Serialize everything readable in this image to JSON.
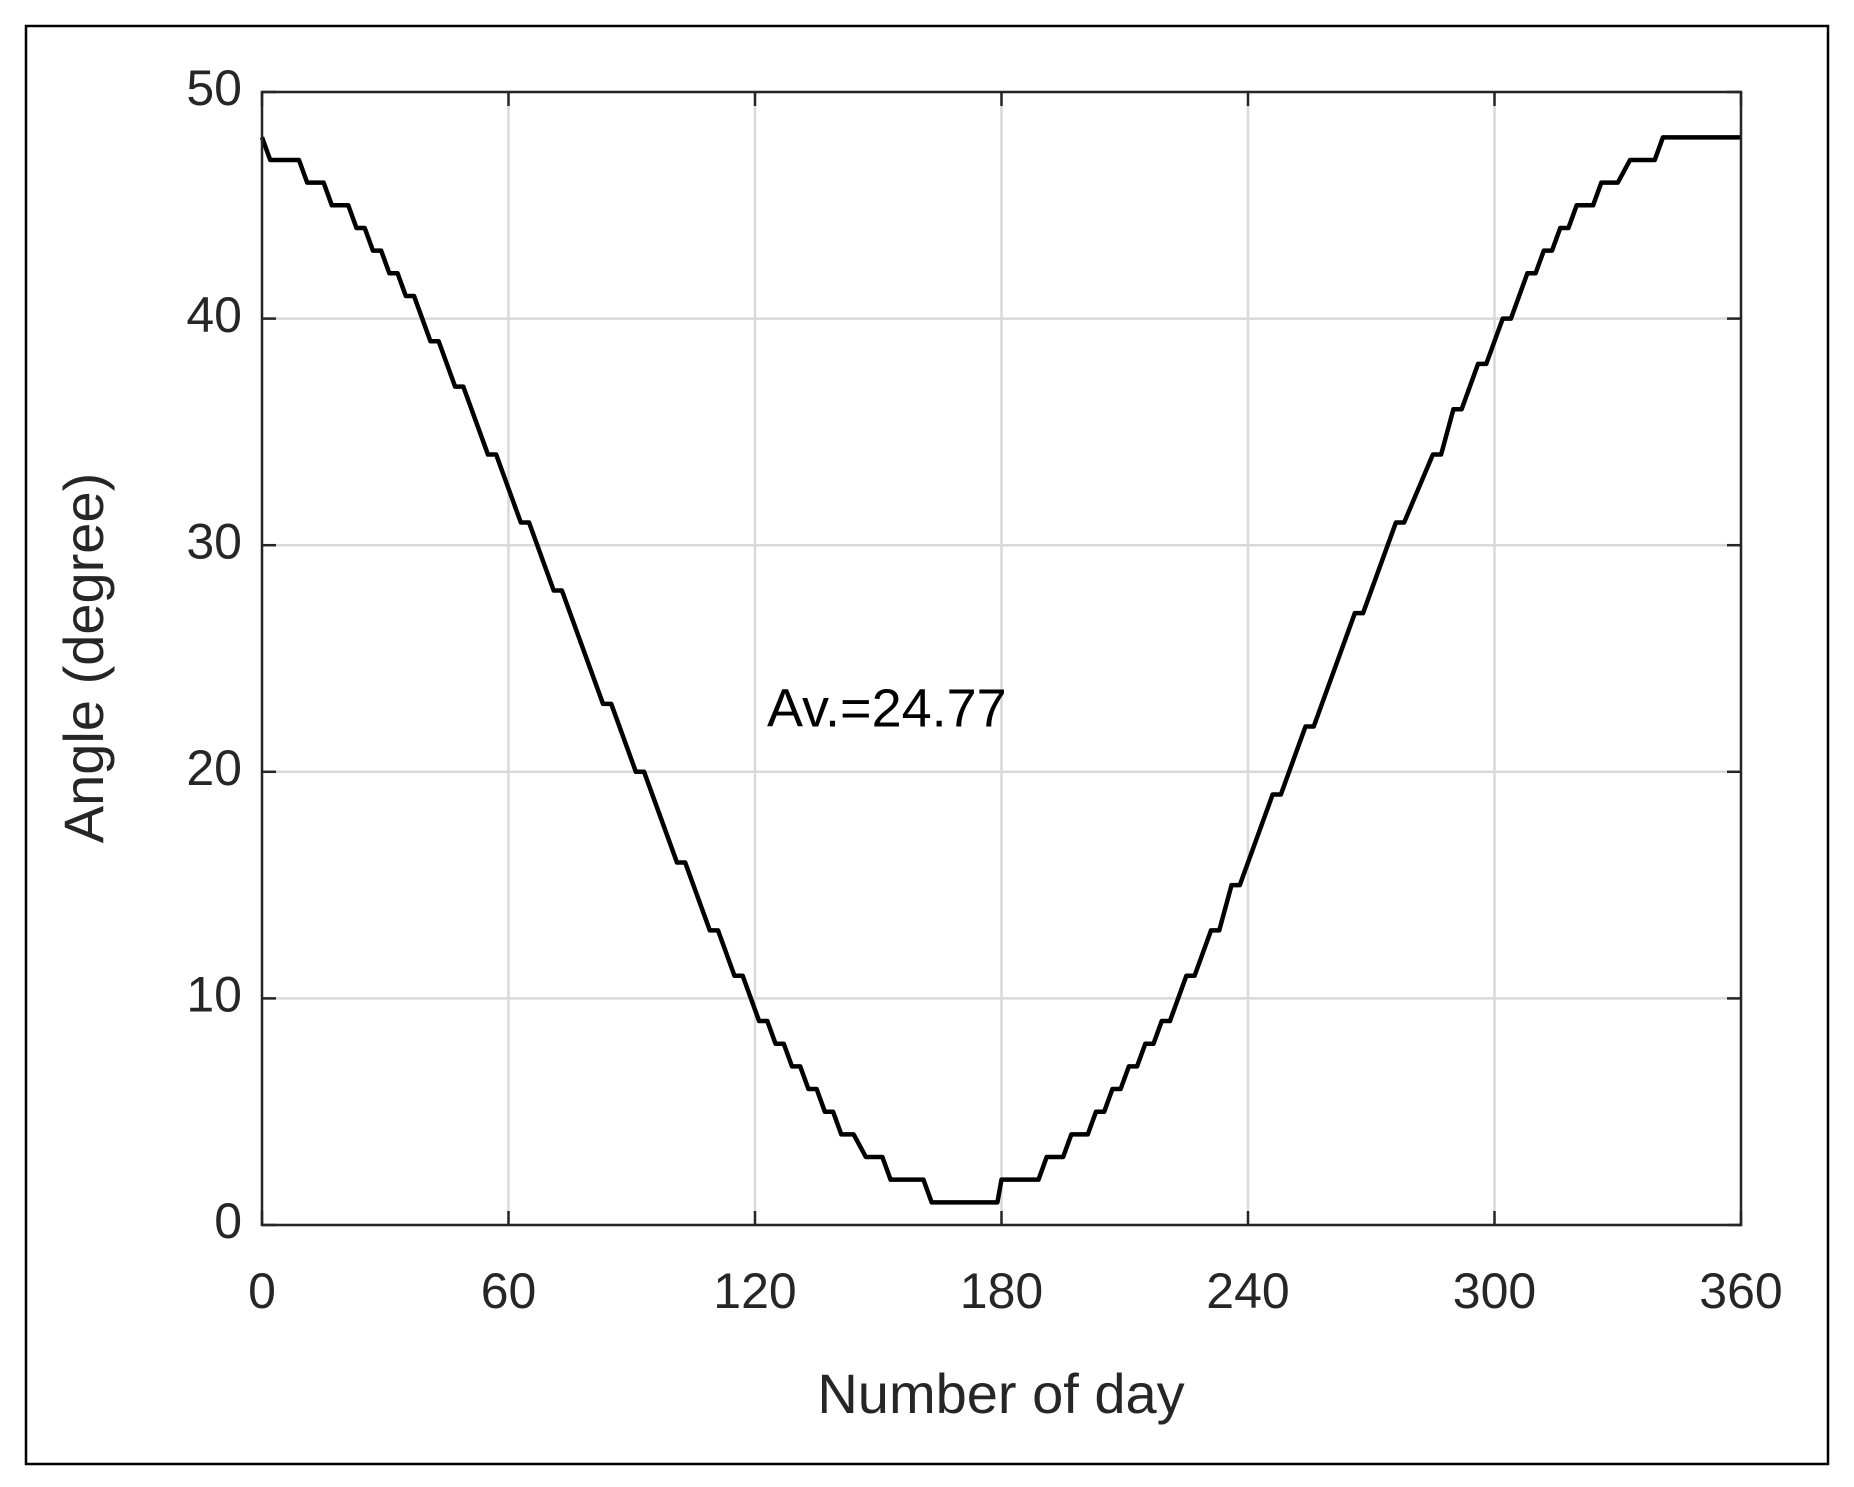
{
  "chart_data": {
    "type": "line",
    "annotation": "Av.=24.77",
    "xlabel": "Number of day",
    "ylabel": "Angle (degree)",
    "x": [
      0,
      2,
      9,
      11,
      15,
      17,
      21,
      23,
      25,
      27,
      29,
      31,
      33,
      35,
      37,
      41,
      43,
      47,
      49,
      55,
      57,
      63,
      65,
      71,
      73,
      83,
      85,
      91,
      93,
      101,
      103,
      109,
      111,
      115,
      117,
      121,
      123,
      125,
      127,
      129,
      131,
      133,
      135,
      137,
      139,
      141,
      144,
      147,
      151,
      153,
      161,
      163,
      179,
      180,
      189,
      191,
      195,
      197,
      201,
      203,
      205,
      207,
      209,
      211,
      213,
      215,
      217,
      219,
      221,
      225,
      227,
      231,
      233,
      236,
      238,
      246,
      248,
      254,
      256,
      266,
      268,
      276,
      278,
      285,
      287,
      290,
      292,
      296,
      298,
      302,
      304,
      308,
      310,
      312,
      314,
      316,
      318,
      320,
      324,
      326,
      330,
      333,
      339,
      341,
      360
    ],
    "values": [
      48,
      47,
      47,
      46,
      46,
      45,
      45,
      44,
      44,
      43,
      43,
      42,
      42,
      41,
      41,
      39,
      39,
      37,
      37,
      34,
      34,
      31,
      31,
      28,
      28,
      23,
      23,
      20,
      20,
      16,
      16,
      13,
      13,
      11,
      11,
      9,
      9,
      8,
      8,
      7,
      7,
      6,
      6,
      5,
      5,
      4,
      4,
      3,
      3,
      2,
      2,
      1,
      1,
      2,
      2,
      3,
      3,
      4,
      4,
      5,
      5,
      6,
      6,
      7,
      7,
      8,
      8,
      9,
      9,
      11,
      11,
      13,
      13,
      15,
      15,
      19,
      19,
      22,
      22,
      27,
      27,
      31,
      31,
      34,
      34,
      36,
      36,
      38,
      38,
      40,
      40,
      42,
      42,
      43,
      43,
      44,
      44,
      45,
      45,
      46,
      46,
      47,
      47,
      48,
      48
    ],
    "color": "#000000",
    "xlim": [
      0,
      360
    ],
    "xticks": [
      0,
      60,
      120,
      180,
      240,
      300,
      360
    ],
    "ylim": [
      0,
      50
    ],
    "yticks": [
      0,
      10,
      20,
      30,
      40,
      50
    ],
    "grid": true
  }
}
